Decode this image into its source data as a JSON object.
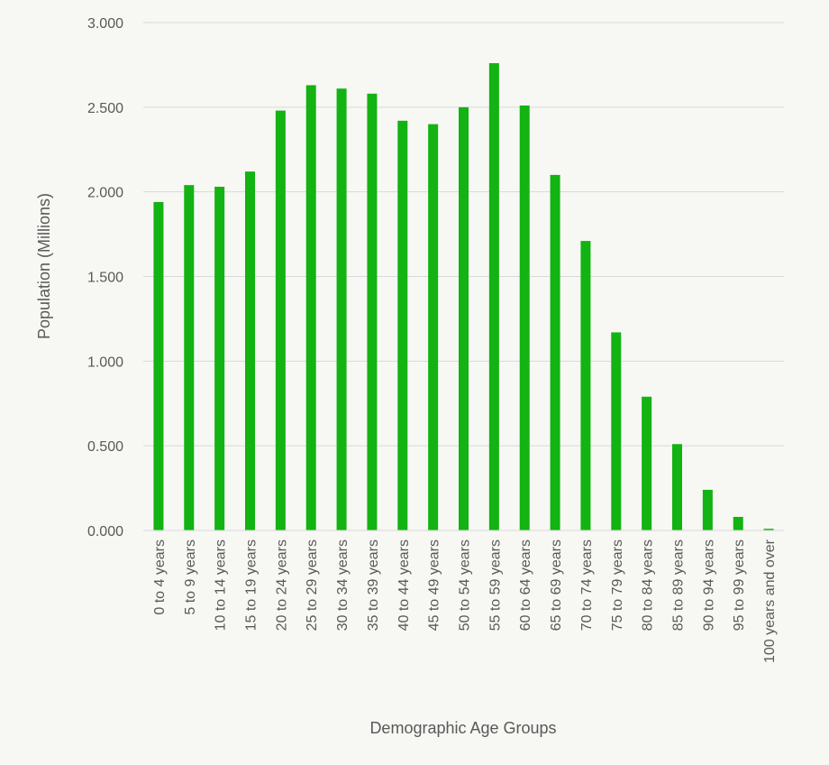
{
  "chart_data": {
    "type": "bar",
    "xlabel": "Demographic Age Groups",
    "ylabel": "Population (Millions)",
    "ylim": [
      0,
      3
    ],
    "yticks": [
      "0.000",
      "0.500",
      "1.000",
      "1.500",
      "2.000",
      "2.500",
      "3.000"
    ],
    "grid": true,
    "bar_color": "#12b312",
    "categories": [
      "0 to 4 years",
      "5 to 9 years",
      "10 to 14 years",
      "15 to 19 years",
      "20 to 24 years",
      "25 to 29 years",
      "30 to 34 years",
      "35 to 39 years",
      "40 to 44 years",
      "45 to 49 years",
      "50 to 54 years",
      "55 to 59 years",
      "60 to 64 years",
      "65 to 69 years",
      "70 to 74 years",
      "75 to 79 years",
      "80 to 84 years",
      "85 to 89 years",
      "90 to 94 years",
      "95 to 99 years",
      "100 years and over"
    ],
    "values": [
      1.94,
      2.04,
      2.03,
      2.12,
      2.48,
      2.63,
      2.61,
      2.58,
      2.42,
      2.4,
      2.5,
      2.76,
      2.51,
      2.1,
      1.71,
      1.17,
      0.79,
      0.51,
      0.24,
      0.08,
      0.01
    ]
  }
}
